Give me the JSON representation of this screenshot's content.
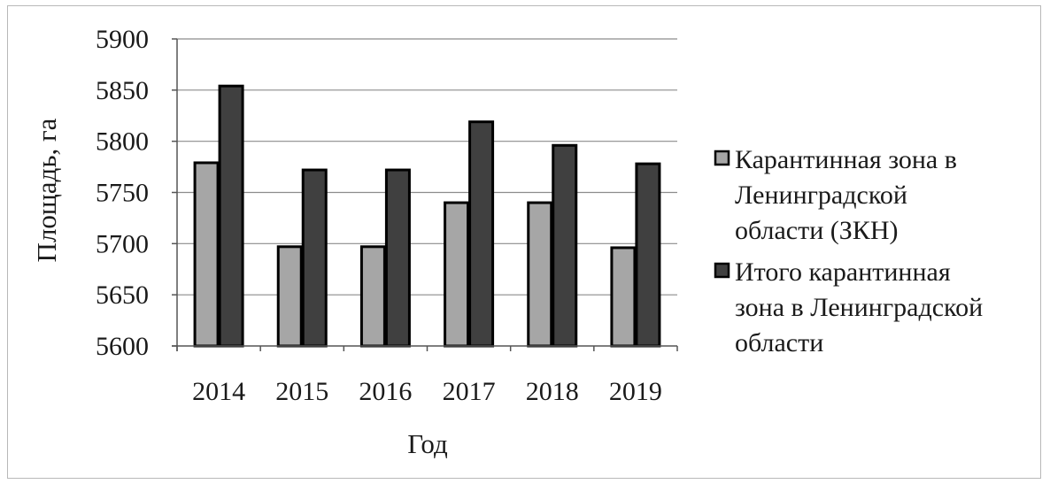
{
  "chart_data": {
    "type": "bar",
    "title": "",
    "xlabel": "Год",
    "ylabel": "Площадь, га",
    "categories": [
      "2014",
      "2015",
      "2016",
      "2017",
      "2018",
      "2019"
    ],
    "ylim": [
      5600,
      5900
    ],
    "yticks": [
      5600,
      5650,
      5700,
      5750,
      5800,
      5850,
      5900
    ],
    "grid": true,
    "legend_position": "right",
    "series": [
      {
        "name": "Карантинная зона в Ленинградской области (ЗКН)",
        "legend_lines": [
          "Карантинная зона в",
          "Ленинградской",
          "области (ЗКН)"
        ],
        "color": "#a6a6a6",
        "values": [
          5779,
          5697,
          5697,
          5740,
          5740,
          5696
        ]
      },
      {
        "name": "Итого карантинная зона в Ленинградской области",
        "legend_lines": [
          "Итого карантинная",
          "зона в Ленинградской",
          "области"
        ],
        "color": "#404040",
        "values": [
          5854,
          5772,
          5772,
          5819,
          5796,
          5778
        ]
      }
    ]
  }
}
